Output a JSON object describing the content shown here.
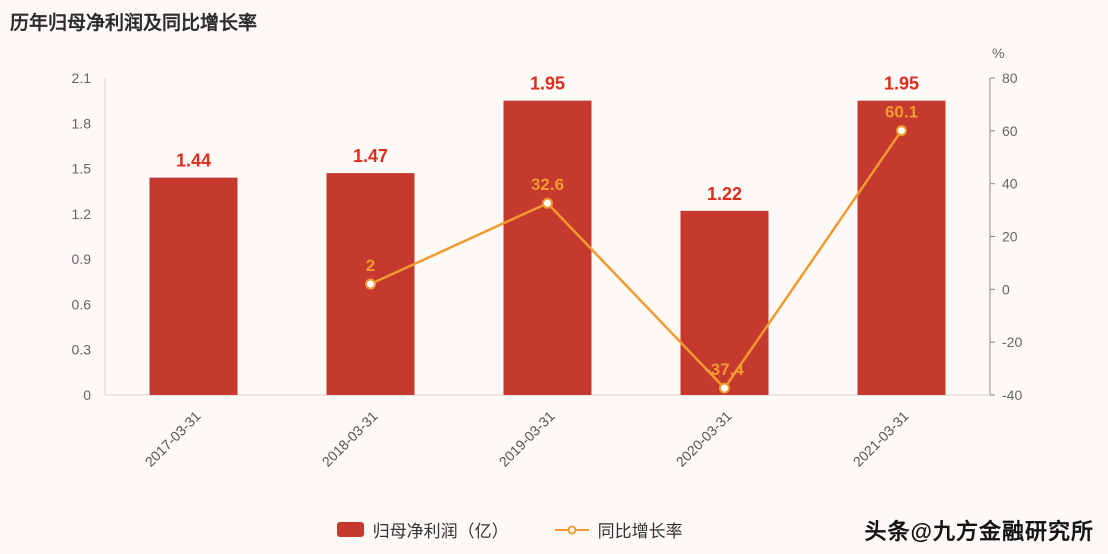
{
  "title": "历年归母净利润及同比增长率",
  "watermark": "头条@九方金融研究所",
  "legend": {
    "bar_label": "归母净利润（亿）",
    "line_label": "同比增长率"
  },
  "colors": {
    "background": "#fcf9f7",
    "bar": "#c5392e",
    "bar_label": "#df2d1c",
    "line": "#f2992f",
    "axis_text": "#666666",
    "light_axis_line": "#d8d3d0",
    "right_axis_line": "#8a8a8a"
  },
  "chart_data": {
    "type": "bar",
    "title": "历年归母净利润及同比增长率",
    "categories": [
      "2017-03-31",
      "2018-03-31",
      "2019-03-31",
      "2020-03-31",
      "2021-03-31"
    ],
    "series": [
      {
        "name": "归母净利润（亿）",
        "type": "bar",
        "axis": "left",
        "color": "#c5392e",
        "label_color": "#df2d1c",
        "values": [
          1.44,
          1.47,
          1.95,
          1.22,
          1.95
        ]
      },
      {
        "name": "同比增长率",
        "type": "line",
        "axis": "right",
        "color": "#f2992f",
        "label_color": "#f2992f",
        "values": [
          null,
          2,
          32.6,
          -37.4,
          60.1
        ]
      }
    ],
    "left_axis": {
      "min": 0,
      "max": 2.1,
      "step": 0.3,
      "ticks": [
        0,
        0.3,
        0.6,
        0.9,
        1.2,
        1.5,
        1.8,
        2.1
      ]
    },
    "right_axis": {
      "min": -40,
      "max": 80,
      "step": 20,
      "unit": "%",
      "ticks": [
        -40,
        -20,
        0,
        20,
        40,
        60,
        80
      ]
    },
    "grid": false,
    "legend_position": "bottom"
  }
}
